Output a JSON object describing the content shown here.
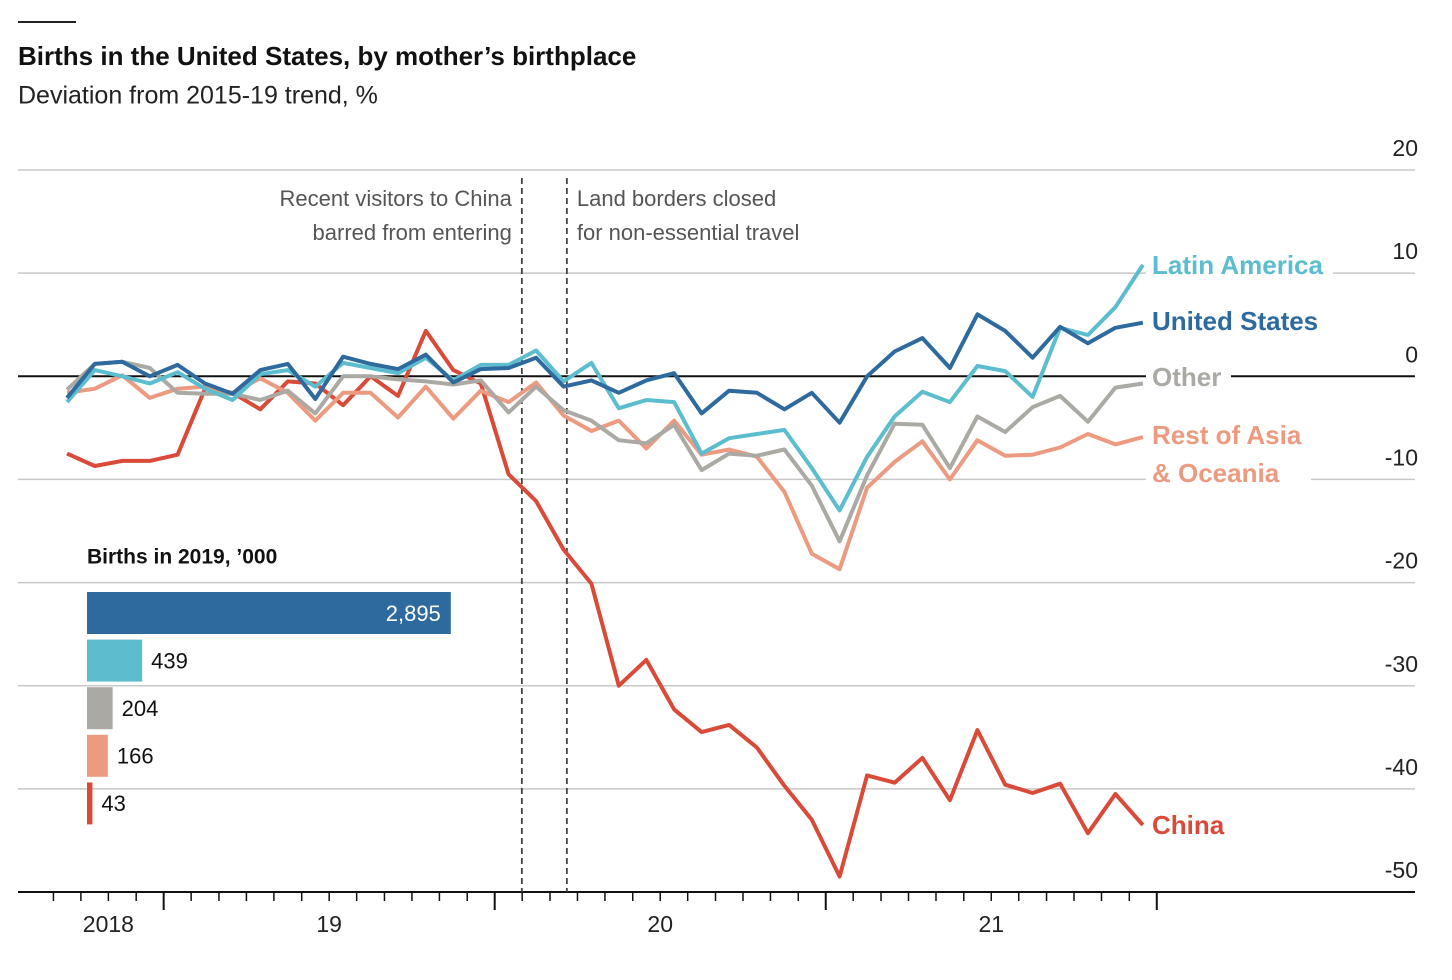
{
  "chart_data": [
    {
      "type": "line",
      "title": "Births in the United States, by mother’s birthplace",
      "subtitle": "Deviation from 2015-19 trend, %",
      "x": [
        2018.708,
        2018.792,
        2018.875,
        2018.958,
        2019.042,
        2019.125,
        2019.208,
        2019.292,
        2019.375,
        2019.458,
        2019.542,
        2019.625,
        2019.708,
        2019.792,
        2019.875,
        2019.958,
        2020.042,
        2020.125,
        2020.208,
        2020.292,
        2020.375,
        2020.458,
        2020.542,
        2020.625,
        2020.708,
        2020.792,
        2020.875,
        2020.958,
        2021.042,
        2021.125,
        2021.208,
        2021.292,
        2021.375,
        2021.458,
        2021.542,
        2021.625,
        2021.708,
        2021.792,
        2021.875,
        2021.958
      ],
      "xlim": [
        2018.56,
        2022.78
      ],
      "xticks": [
        {
          "value": 2018.833,
          "label": "2018"
        },
        {
          "value": 2019.5,
          "label": "19"
        },
        {
          "value": 2020.5,
          "label": "20"
        },
        {
          "value": 2021.5,
          "label": "21"
        }
      ],
      "xmajorticks": [
        2019,
        2020,
        2021,
        2022
      ],
      "xminorticks": [
        2018.667,
        2018.75,
        2018.833,
        2018.917,
        2019.083,
        2019.167,
        2019.25,
        2019.333,
        2019.417,
        2019.5,
        2019.583,
        2019.667,
        2019.75,
        2019.833,
        2019.917,
        2020.083,
        2020.167,
        2020.25,
        2020.333,
        2020.417,
        2020.5,
        2020.583,
        2020.667,
        2020.75,
        2020.833,
        2020.917,
        2021.083,
        2021.167,
        2021.25,
        2021.333,
        2021.417,
        2021.5,
        2021.583,
        2021.667,
        2021.75,
        2021.833,
        2021.917
      ],
      "ylim": [
        -50,
        20
      ],
      "yticks": [
        -50,
        -40,
        -30,
        -20,
        -10,
        0,
        10,
        20
      ],
      "grid": true,
      "annotations": [
        {
          "label": "Recent visitors to China\nbarred from entering",
          "x": 2020.082
        },
        {
          "label": "Land borders closed\nfor non-essential travel",
          "x": 2020.218
        }
      ],
      "series": [
        {
          "name": "United States",
          "color": "#2e6a9e",
          "values": [
            -2.1,
            1.2,
            1.4,
            0,
            1.1,
            -0.7,
            -1.7,
            0.6,
            1.2,
            -2.2,
            1.9,
            1.2,
            0.7,
            2.1,
            -0.6,
            0.7,
            0.8,
            1.8,
            -1.0,
            -0.4,
            -1.6,
            -0.4,
            0.3,
            -3.6,
            -1.4,
            -1.6,
            -3.2,
            -1.6,
            -4.5,
            0,
            2.4,
            3.7,
            0.8,
            6.0,
            4.4,
            1.8,
            4.8,
            3.2,
            4.7,
            5.2
          ]
        },
        {
          "name": "Latin America",
          "color": "#5bbdcd",
          "values": [
            -2.5,
            0.6,
            0,
            -0.7,
            0.4,
            -1.2,
            -2.3,
            0.2,
            0.6,
            -1.0,
            1.3,
            0.8,
            0.3,
            1.8,
            -0.4,
            1.1,
            1.1,
            2.5,
            -0.5,
            1.3,
            -3.1,
            -2.3,
            -2.5,
            -7.5,
            -6.0,
            -5.6,
            -5.2,
            -8.9,
            -13.0,
            -7.8,
            -3.9,
            -1.5,
            -2.5,
            1.0,
            0.5,
            -2.0,
            4.7,
            4.0,
            6.7,
            10.8
          ]
        },
        {
          "name": "Other",
          "color": "#aba9a3",
          "values": [
            -1.3,
            1.2,
            1.4,
            0.8,
            -1.6,
            -1.7,
            -1.7,
            -2.3,
            -1.4,
            -3.6,
            0,
            0,
            -0.3,
            -0.5,
            -0.8,
            -0.4,
            -3.5,
            -1.0,
            -3.3,
            -4.3,
            -6.2,
            -6.5,
            -4.7,
            -9.1,
            -7.5,
            -7.7,
            -7.1,
            -10.6,
            -16.0,
            -9.6,
            -4.6,
            -4.7,
            -8.9,
            -3.9,
            -5.4,
            -3.0,
            -1.9,
            -4.4,
            -1.1,
            -0.7
          ]
        },
        {
          "name": "Rest of Asia\n& Oceania",
          "color": "#ec9a80",
          "values": [
            -1.6,
            -1.2,
            0.1,
            -2.1,
            -1.2,
            -1.0,
            -1.6,
            -0.2,
            -1.6,
            -4.3,
            -1.6,
            -1.6,
            -4.0,
            -1.0,
            -4.1,
            -1.4,
            -2.5,
            -0.6,
            -3.8,
            -5.3,
            -4.3,
            -7.0,
            -4.3,
            -7.6,
            -7.1,
            -7.8,
            -11.2,
            -17.2,
            -18.7,
            -10.8,
            -8.3,
            -6.3,
            -10.0,
            -6.2,
            -7.7,
            -7.6,
            -6.9,
            -5.6,
            -6.6,
            -5.9
          ]
        },
        {
          "name": "China",
          "color": "#d94a38",
          "values": [
            -7.5,
            -8.7,
            -8.2,
            -8.2,
            -7.6,
            -1.2,
            -1.6,
            -3.2,
            -0.5,
            -0.7,
            -2.8,
            0,
            -1.9,
            4.4,
            0.6,
            -0.7,
            -9.5,
            -12.1,
            -16.8,
            -20.1,
            -30.0,
            -27.5,
            -32.3,
            -34.5,
            -33.8,
            -36.0,
            -39.7,
            -43.0,
            -48.5,
            -38.7,
            -39.4,
            -37.0,
            -41.1,
            -34.3,
            -39.6,
            -40.4,
            -39.5,
            -44.3,
            -40.5,
            -43.5
          ]
        }
      ]
    },
    {
      "type": "bar",
      "orientation": "horizontal",
      "title": "Births in 2019, ’000",
      "values": [
        2895,
        439,
        204,
        166,
        43
      ],
      "value_labels": [
        "2,895",
        "439",
        "204",
        "166",
        "43"
      ],
      "colors": [
        "#2e6a9e",
        "#5bbdcd",
        "#aba9a3",
        "#ec9a80",
        "#d94a38"
      ],
      "xlim": [
        0,
        3000
      ]
    }
  ]
}
